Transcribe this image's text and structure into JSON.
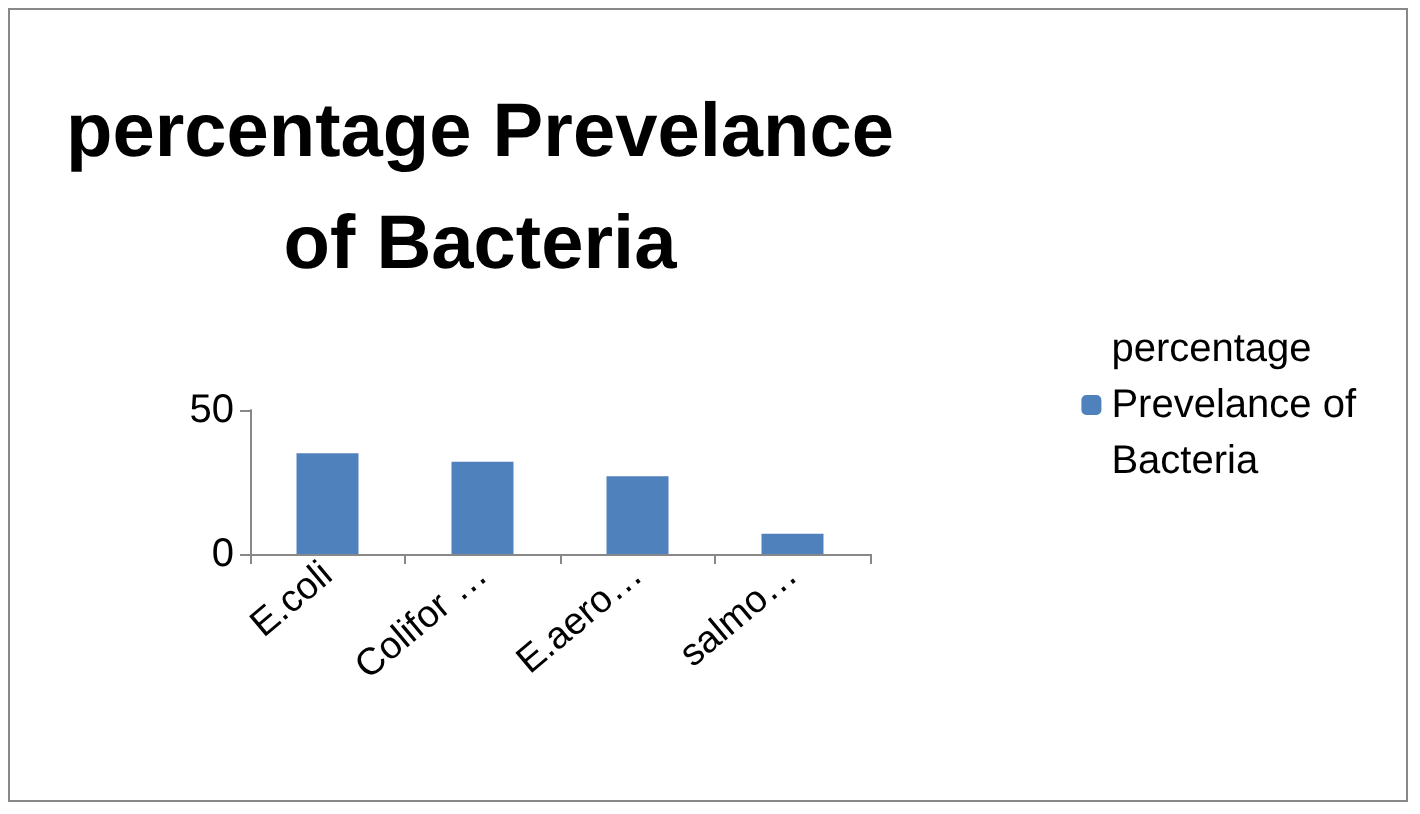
{
  "chart_data": {
    "type": "bar",
    "title": "percentage Prevelance\nof Bacteria",
    "categories": [
      "E.coli",
      "Colifor …",
      "E.aero…",
      "salmo…"
    ],
    "series": [
      {
        "name": "percentage\nPrevelance of\nBacteria",
        "color": "#4f81bd",
        "values": [
          35,
          32,
          27,
          7
        ]
      }
    ],
    "ylim": [
      0,
      50
    ],
    "yticks": [
      0,
      50
    ],
    "legend": "right"
  }
}
